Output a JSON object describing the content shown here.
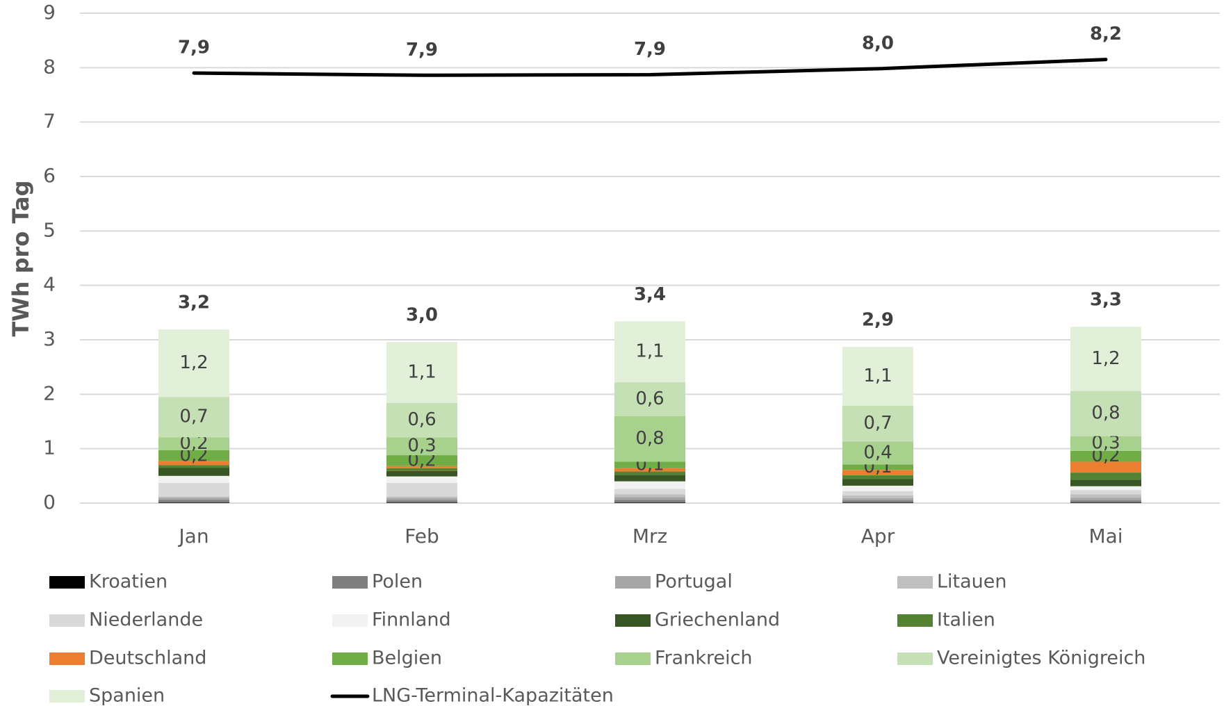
{
  "chart_data": {
    "type": "bar",
    "stacked": true,
    "y_label": "TWh pro Tag",
    "categories": [
      "Jan",
      "Feb",
      "Mrz",
      "Apr",
      "Mai"
    ],
    "ylim": [
      0,
      9
    ],
    "yticks": [
      0,
      1,
      2,
      3,
      4,
      5,
      6,
      7,
      8,
      9
    ],
    "grid": true,
    "series": [
      {
        "name": "Kroatien",
        "color": "#000000",
        "values": [
          0.01,
          0.01,
          0.01,
          0.01,
          0.01
        ]
      },
      {
        "name": "Polen",
        "color": "#7f7f7f",
        "values": [
          0.05,
          0.04,
          0.05,
          0.04,
          0.04
        ]
      },
      {
        "name": "Portugal",
        "color": "#a5a5a5",
        "values": [
          0.04,
          0.04,
          0.05,
          0.04,
          0.05
        ]
      },
      {
        "name": "Litauen",
        "color": "#bfbfbf",
        "values": [
          0.02,
          0.03,
          0.05,
          0.05,
          0.06
        ]
      },
      {
        "name": "Niederlande",
        "color": "#d9d9d9",
        "values": [
          0.25,
          0.25,
          0.1,
          0.08,
          0.08
        ]
      },
      {
        "name": "Finnland",
        "color": "#f2f2f2",
        "values": [
          0.13,
          0.12,
          0.14,
          0.1,
          0.07
        ]
      },
      {
        "name": "Griechenland",
        "color": "#375623",
        "values": [
          0.15,
          0.1,
          0.12,
          0.12,
          0.12
        ]
      },
      {
        "name": "Italien",
        "color": "#548235",
        "values": [
          0.05,
          0.05,
          0.06,
          0.07,
          0.13
        ]
      },
      {
        "name": "Deutschland",
        "color": "#ed7d31",
        "values": [
          0.07,
          0.04,
          0.06,
          0.1,
          0.2
        ]
      },
      {
        "name": "Belgien",
        "color": "#70ad47",
        "values": [
          0.2,
          0.2,
          0.12,
          0.1,
          0.2
        ],
        "value_labels": [
          "0,2",
          "0,2",
          "0,1",
          "0,1",
          "0,2"
        ]
      },
      {
        "name": "Frankreich",
        "color": "#a9d18e",
        "values": [
          0.24,
          0.33,
          0.84,
          0.42,
          0.27
        ],
        "value_labels": [
          "0,2",
          "0,3",
          "0,8",
          "0,4",
          "0,3"
        ]
      },
      {
        "name": "Vereinigtes Königreich",
        "color": "#c5e0b4",
        "values": [
          0.74,
          0.63,
          0.62,
          0.66,
          0.83
        ],
        "value_labels": [
          "0,7",
          "0,6",
          "0,6",
          "0,7",
          "0,8"
        ]
      },
      {
        "name": "Spanien",
        "color": "#e2f0d9",
        "values": [
          1.24,
          1.12,
          1.12,
          1.08,
          1.18
        ],
        "value_labels": [
          "1,2",
          "1,1",
          "1,1",
          "1,1",
          "1,2"
        ]
      }
    ],
    "totals": {
      "values": [
        3.2,
        3.0,
        3.4,
        2.9,
        3.3
      ],
      "value_labels": [
        "3,2",
        "3,0",
        "3,4",
        "2,9",
        "3,3"
      ]
    },
    "line": {
      "name": "LNG-Terminal-Kapazitäten",
      "color": "#000000",
      "values": [
        7.9,
        7.86,
        7.87,
        7.98,
        8.15
      ],
      "value_labels": [
        "7,9",
        "7,9",
        "7,9",
        "8,0",
        "8,2"
      ]
    }
  }
}
